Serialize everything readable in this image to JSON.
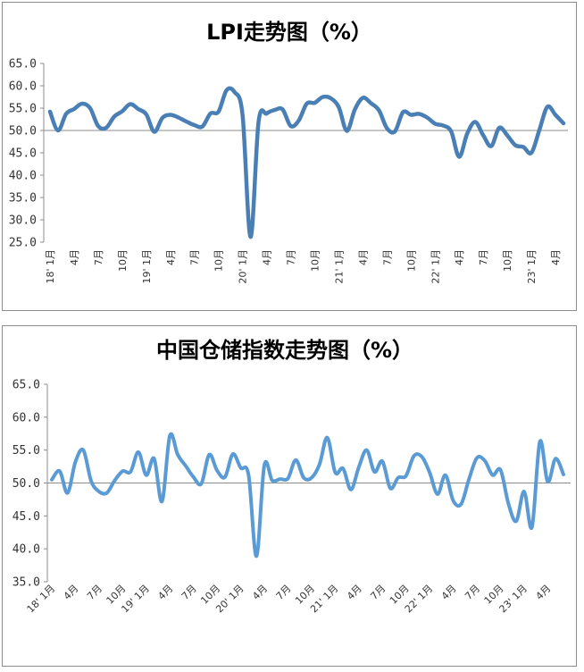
{
  "chart_data": [
    {
      "type": "line",
      "title": "LPI走势图（%）",
      "xlabel": "",
      "ylabel": "",
      "ylim": [
        25,
        65
      ],
      "yticks": [
        "65.0",
        "60.0",
        "55.0",
        "50.0",
        "45.0",
        "40.0",
        "35.0",
        "30.0",
        "25.0"
      ],
      "baseline": 50,
      "grid": false,
      "line_color": "#4a7fb5",
      "x_tick_labels": [
        "18' 1月",
        "4月",
        "7月",
        "10月",
        "19' 1月",
        "4月",
        "7月",
        "10月",
        "20' 1月",
        "4月",
        "7月",
        "10月",
        "21' 1月",
        "4月",
        "7月",
        "10月",
        "22' 1月",
        "4月",
        "7月",
        "10月",
        "23' 1月",
        "4月"
      ],
      "series": [
        {
          "values": [
            54.2,
            50.0,
            53.7,
            54.8,
            56.0,
            55.0,
            51.0,
            50.6,
            53.1,
            54.3,
            55.9,
            54.8,
            53.6,
            49.7,
            52.8,
            53.5,
            52.9,
            52.0,
            51.2,
            50.9,
            53.8,
            54.2,
            59.0,
            58.6,
            53.5,
            26.2,
            52.0,
            53.8,
            54.6,
            54.7,
            51.0,
            52.2,
            56.0,
            56.2,
            57.5,
            57.2,
            55.2,
            49.9,
            54.7,
            57.3,
            56.1,
            54.5,
            50.5,
            49.8,
            54.1,
            53.5,
            53.7,
            52.9,
            51.5,
            51.1,
            49.8,
            44.1,
            49.3,
            51.9,
            48.9,
            46.5,
            50.6,
            48.9,
            46.7,
            46.3,
            45.0,
            50.1,
            55.3,
            53.5,
            51.6
          ]
        }
      ]
    },
    {
      "type": "line",
      "title": "中国仓储指数走势图（%）",
      "xlabel": "",
      "ylabel": "",
      "ylim": [
        35,
        65
      ],
      "yticks": [
        "65.0",
        "60.0",
        "55.0",
        "50.0",
        "45.0",
        "40.0",
        "35.0"
      ],
      "baseline": 50,
      "grid": false,
      "line_color": "#5b9bd5",
      "x_tick_labels": [
        "18' 1月",
        "4月",
        "7月",
        "10月",
        "19' 1月",
        "4月",
        "7月",
        "10月",
        "20' 1月",
        "4月",
        "7月",
        "10月",
        "21' 1月",
        "4月",
        "7月",
        "10月",
        "22' 1月",
        "4月",
        "7月",
        "10月",
        "23' 1月",
        "4月"
      ],
      "series": [
        {
          "values": [
            50.5,
            51.8,
            48.5,
            53.2,
            55.0,
            50.3,
            48.7,
            48.5,
            50.4,
            51.8,
            51.7,
            54.7,
            51.2,
            53.7,
            47.2,
            57.2,
            54.3,
            52.6,
            50.9,
            49.9,
            54.3,
            51.9,
            50.9,
            54.4,
            52.3,
            51.2,
            38.9,
            52.7,
            50.4,
            50.6,
            50.7,
            53.5,
            50.8,
            50.8,
            52.8,
            56.9,
            51.6,
            52.2,
            49.0,
            52.4,
            55.0,
            51.7,
            53.3,
            49.2,
            50.8,
            51.1,
            54.1,
            54.0,
            51.6,
            48.3,
            51.2,
            47.3,
            46.8,
            50.6,
            53.8,
            53.4,
            51.2,
            52.0,
            46.9,
            44.2,
            48.7,
            43.3,
            56.3,
            50.2,
            53.7,
            51.3
          ]
        }
      ]
    }
  ]
}
